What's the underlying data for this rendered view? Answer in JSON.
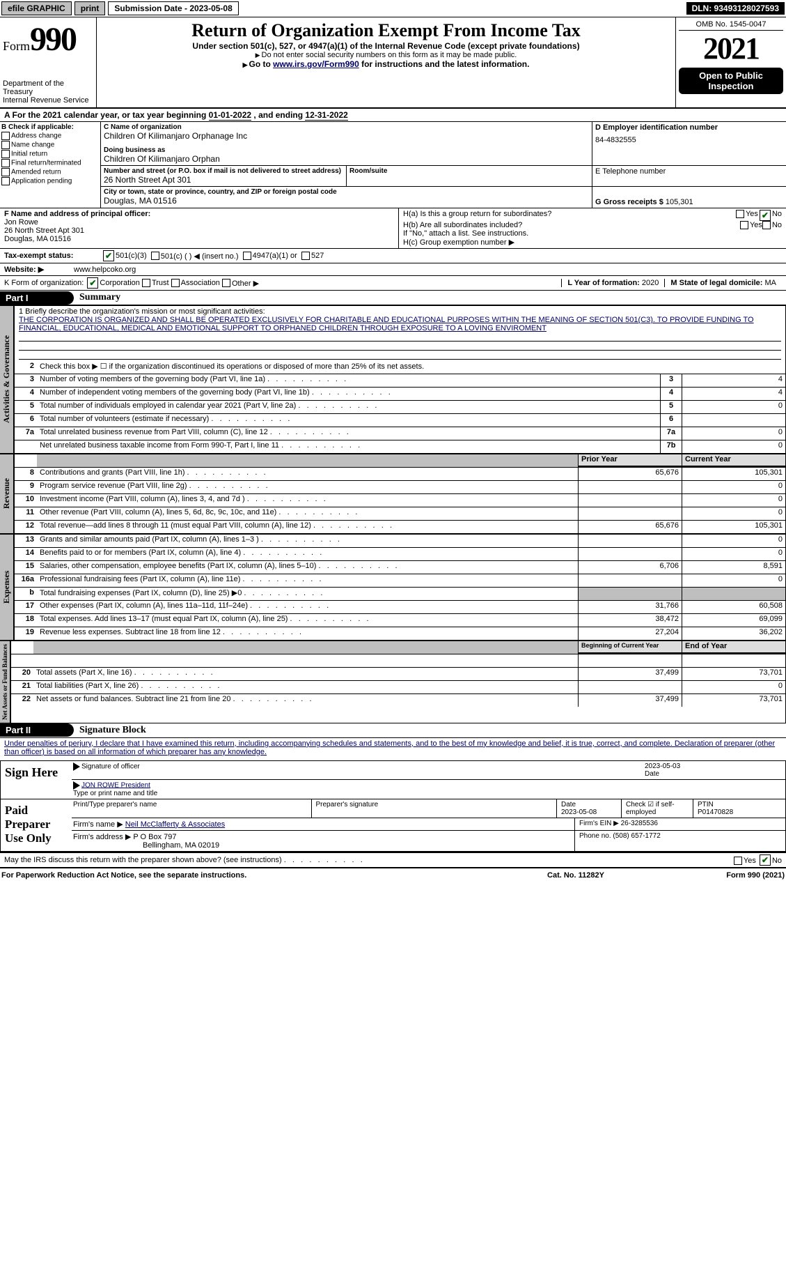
{
  "topbar": {
    "efile": "efile GRAPHIC",
    "print": "print",
    "sub_label": "Submission Date - 2023-05-08",
    "dln": "DLN: 93493128027593"
  },
  "header": {
    "form_word": "Form",
    "form_no": "990",
    "dept1": "Department of the Treasury",
    "dept2": "Internal Revenue Service",
    "title": "Return of Organization Exempt From Income Tax",
    "subtitle": "Under section 501(c), 527, or 4947(a)(1) of the Internal Revenue Code (except private foundations)",
    "warn": "Do not enter social security numbers on this form as it may be made public.",
    "goto": "Go to ",
    "irs_link": "www.irs.gov/Form990",
    "goto2": " for instructions and the latest information.",
    "omb": "OMB No. 1545-0047",
    "year": "2021",
    "open": "Open to Public Inspection"
  },
  "period": {
    "a": "A For the 2021 calendar year, or tax year beginning ",
    "begin": "01-01-2022",
    "mid": " , and ending ",
    "end": "12-31-2022"
  },
  "boxB": {
    "label": "B Check if applicable:",
    "opts": [
      "Address change",
      "Name change",
      "Initial return",
      "Final return/terminated",
      "Amended return",
      "Application pending"
    ]
  },
  "boxC": {
    "name_lbl": "C Name of organization",
    "name": "Children Of Kilimanjaro Orphanage Inc",
    "dba_lbl": "Doing business as",
    "dba": "Children Of Kilimanjaro Orphan",
    "addr_lbl": "Number and street (or P.O. box if mail is not delivered to street address)",
    "room_lbl": "Room/suite",
    "addr": "26 North Street Apt 301",
    "city_lbl": "City or town, state or province, country, and ZIP or foreign postal code",
    "city": "Douglas, MA  01516"
  },
  "boxD": {
    "lbl": "D Employer identification number",
    "val": "84-4832555"
  },
  "boxE": {
    "lbl": "E Telephone number",
    "val": ""
  },
  "boxG": {
    "lbl": "G Gross receipts $",
    "val": "105,301"
  },
  "boxF": {
    "lbl": "F Name and address of principal officer:",
    "name": "Jon Rowe",
    "addr1": "26 North Street Apt 301",
    "addr2": "Douglas, MA  01516"
  },
  "boxH": {
    "a": "H(a)  Is this a group return for subordinates?",
    "b": "H(b)  Are all subordinates included?",
    "bnote": "If \"No,\" attach a list. See instructions.",
    "c": "H(c)  Group exemption number ▶",
    "yes": "Yes",
    "no": "No"
  },
  "taxstatus": {
    "lbl": "Tax-exempt status:",
    "c3": "501(c)(3)",
    "c": "501(c) (    ) ◀ (insert no.)",
    "a1": "4947(a)(1) or",
    "s527": "527"
  },
  "boxJ": {
    "lbl": "Website: ▶",
    "val": "www.helpcoko.org"
  },
  "boxK": {
    "lbl": "K Form of organization:",
    "corp": "Corporation",
    "trust": "Trust",
    "assoc": "Association",
    "other": "Other ▶"
  },
  "boxL": {
    "lbl": "L Year of formation:",
    "val": "2020"
  },
  "boxM": {
    "lbl": "M State of legal domicile:",
    "val": "MA"
  },
  "part1": {
    "label": "Part I",
    "title": "Summary"
  },
  "mission": {
    "lbl": "1  Briefly describe the organization's mission or most significant activities:",
    "text": "THE CORPORATION IS ORGANIZED AND SHALL BE OPERATED EXCLUSIVELY FOR CHARITABLE AND EDUCATIONAL PURPOSES WITHIN THE MEANING OF SECTION 501(C3). TO PROVIDE FUNDING TO FINANCIAL, EDUCATIONAL, MEDICAL AND EMOTIONAL SUPPORT TO ORPHANED CHILDREN THROUGH EXPOSURE TO A LOVING ENVIROMENT"
  },
  "gov": {
    "tab": "Activities & Governance",
    "l2": "Check this box ▶ ☐ if the organization discontinued its operations or disposed of more than 25% of its net assets.",
    "rows": [
      {
        "n": "3",
        "d": "Number of voting members of the governing body (Part VI, line 1a)",
        "box": "3",
        "v": "4"
      },
      {
        "n": "4",
        "d": "Number of independent voting members of the governing body (Part VI, line 1b)",
        "box": "4",
        "v": "4"
      },
      {
        "n": "5",
        "d": "Total number of individuals employed in calendar year 2021 (Part V, line 2a)",
        "box": "5",
        "v": "0"
      },
      {
        "n": "6",
        "d": "Total number of volunteers (estimate if necessary)",
        "box": "6",
        "v": ""
      },
      {
        "n": "7a",
        "d": "Total unrelated business revenue from Part VIII, column (C), line 12",
        "box": "7a",
        "v": "0"
      },
      {
        "n": "",
        "d": "Net unrelated business taxable income from Form 990-T, Part I, line 11",
        "box": "7b",
        "v": "0"
      }
    ]
  },
  "rev": {
    "tab": "Revenue",
    "hdr_prior": "Prior Year",
    "hdr_curr": "Current Year",
    "rows": [
      {
        "n": "8",
        "d": "Contributions and grants (Part VIII, line 1h)",
        "p": "65,676",
        "c": "105,301"
      },
      {
        "n": "9",
        "d": "Program service revenue (Part VIII, line 2g)",
        "p": "",
        "c": "0"
      },
      {
        "n": "10",
        "d": "Investment income (Part VIII, column (A), lines 3, 4, and 7d )",
        "p": "",
        "c": "0"
      },
      {
        "n": "11",
        "d": "Other revenue (Part VIII, column (A), lines 5, 6d, 8c, 9c, 10c, and 11e)",
        "p": "",
        "c": "0"
      },
      {
        "n": "12",
        "d": "Total revenue—add lines 8 through 11 (must equal Part VIII, column (A), line 12)",
        "p": "65,676",
        "c": "105,301"
      }
    ]
  },
  "exp": {
    "tab": "Expenses",
    "rows": [
      {
        "n": "13",
        "d": "Grants and similar amounts paid (Part IX, column (A), lines 1–3 )",
        "p": "",
        "c": "0"
      },
      {
        "n": "14",
        "d": "Benefits paid to or for members (Part IX, column (A), line 4)",
        "p": "",
        "c": "0"
      },
      {
        "n": "15",
        "d": "Salaries, other compensation, employee benefits (Part IX, column (A), lines 5–10)",
        "p": "6,706",
        "c": "8,591"
      },
      {
        "n": "16a",
        "d": "Professional fundraising fees (Part IX, column (A), line 11e)",
        "p": "",
        "c": "0"
      },
      {
        "n": "b",
        "d": "Total fundraising expenses (Part IX, column (D), line 25) ▶0",
        "p": "shade",
        "c": "shade"
      },
      {
        "n": "17",
        "d": "Other expenses (Part IX, column (A), lines 11a–11d, 11f–24e)",
        "p": "31,766",
        "c": "60,508"
      },
      {
        "n": "18",
        "d": "Total expenses. Add lines 13–17 (must equal Part IX, column (A), line 25)",
        "p": "38,472",
        "c": "69,099"
      },
      {
        "n": "19",
        "d": "Revenue less expenses. Subtract line 18 from line 12",
        "p": "27,204",
        "c": "36,202"
      }
    ]
  },
  "net": {
    "tab": "Net Assets or Fund Balances",
    "hdr_beg": "Beginning of Current Year",
    "hdr_end": "End of Year",
    "rows": [
      {
        "n": "20",
        "d": "Total assets (Part X, line 16)",
        "p": "37,499",
        "c": "73,701"
      },
      {
        "n": "21",
        "d": "Total liabilities (Part X, line 26)",
        "p": "",
        "c": "0"
      },
      {
        "n": "22",
        "d": "Net assets or fund balances. Subtract line 21 from line 20",
        "p": "37,499",
        "c": "73,701"
      }
    ]
  },
  "part2": {
    "label": "Part II",
    "title": "Signature Block"
  },
  "sigtext": "Under penalties of perjury, I declare that I have examined this return, including accompanying schedules and statements, and to the best of my knowledge and belief, it is true, correct, and complete. Declaration of preparer (other than officer) is based on all information of which preparer has any knowledge.",
  "sign": {
    "here": "Sign Here",
    "date": "2023-05-03",
    "sig_lbl": "Signature of officer",
    "date_lbl": "Date",
    "name": "JON ROWE President",
    "name_lbl": "Type or print name and title"
  },
  "paid": {
    "here": "Paid Preparer Use Only",
    "h1": "Print/Type preparer's name",
    "h2": "Preparer's signature",
    "h3": "Date",
    "h4": "Check ☑ if self-employed",
    "h5": "PTIN",
    "date": "2023-05-08",
    "ptin": "P01470828",
    "firm_lbl": "Firm's name   ▶",
    "firm": "Neil McClafferty & Associates",
    "ein_lbl": "Firm's EIN ▶",
    "ein": "26-3285536",
    "addr_lbl": "Firm's address ▶",
    "addr1": "P O Box 797",
    "addr2": "Bellingham, MA  02019",
    "phone_lbl": "Phone no.",
    "phone": "(508) 657-1772"
  },
  "discuss": "May the IRS discuss this return with the preparer shown above? (see instructions)",
  "footer": {
    "l": "For Paperwork Reduction Act Notice, see the separate instructions.",
    "m": "Cat. No. 11282Y",
    "r": "Form 990 (2021)"
  },
  "colors": {
    "link": "#000066",
    "green": "#006600"
  }
}
